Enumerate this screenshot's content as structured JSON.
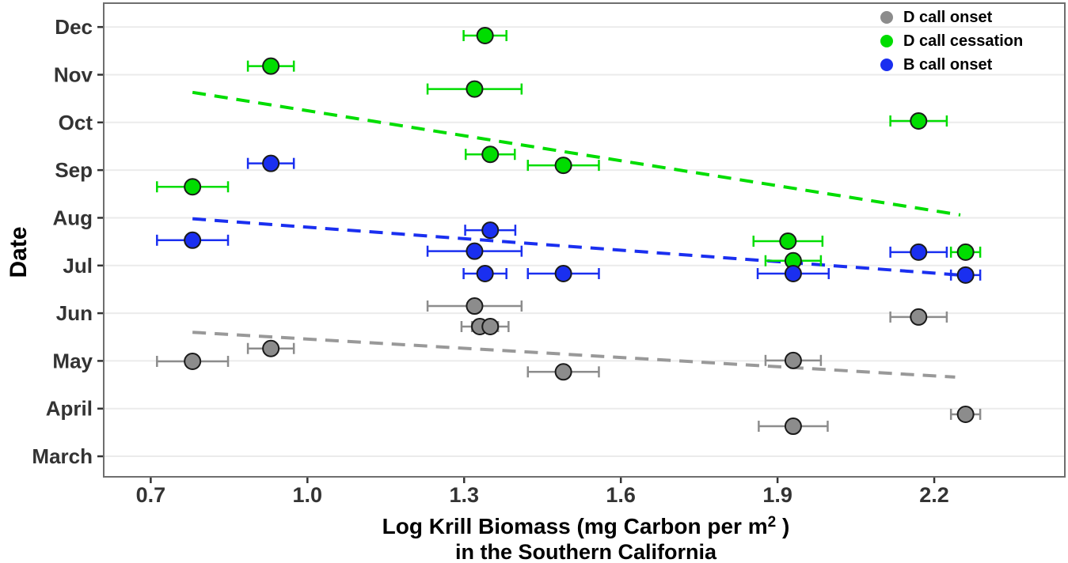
{
  "chart_data": {
    "type": "scatter",
    "title": "",
    "xlabel": {
      "line1_prefix": "Log Krill Biomass (mg Carbon per m",
      "superscript": "2",
      "line1_suffix": " )",
      "line2": "in the Southern California"
    },
    "ylabel": "Date",
    "x_tick_labels": [
      "0.7",
      "1.0",
      "1.3",
      "1.6",
      "1.9",
      "2.2"
    ],
    "x_tick_values": [
      0.7,
      1.0,
      1.3,
      1.6,
      1.9,
      2.2
    ],
    "xlim": [
      0.61,
      2.45
    ],
    "y_tick_labels": [
      "March",
      "April",
      "May",
      "Jun",
      "Jul",
      "Aug",
      "Sep",
      "Oct",
      "Nov",
      "Dec"
    ],
    "y_tick_values": [
      0,
      1,
      2,
      3,
      4,
      5,
      6,
      7,
      8,
      9
    ],
    "y_scale_note": "y measured in months since March (0 = March, 9 = Dec)",
    "ylim": [
      -0.43,
      9.5
    ],
    "grid": "horizontal-major-only",
    "grid_color": "#ebebeb",
    "panel_border_color": "#6e6e6e",
    "tick_color": "#333333",
    "axis_text_color": "#333333",
    "legend_position": "top-right-inside",
    "series": [
      {
        "name": "D call onset",
        "color": "#8c8c8c",
        "trend_color": "#999999",
        "point_edge_color": "#1a1a1a",
        "marker": "circle",
        "line_style": "dashed",
        "trend": {
          "x_start": 0.78,
          "y_start": 2.6,
          "x_end": 2.24,
          "y_end": 1.66
        },
        "points": [
          {
            "x": 0.78,
            "y": 1.99,
            "xerr": 0.068
          },
          {
            "x": 0.93,
            "y": 2.26,
            "xerr": 0.044
          },
          {
            "x": 1.32,
            "y": 3.15,
            "xerr": 0.09
          },
          {
            "x": 1.33,
            "y": 2.72,
            "xerr": 0.035
          },
          {
            "x": 1.35,
            "y": 2.72,
            "xerr": 0.035
          },
          {
            "x": 1.49,
            "y": 1.77,
            "xerr": 0.068
          },
          {
            "x": 1.93,
            "y": 2.01,
            "xerr": 0.053
          },
          {
            "x": 1.93,
            "y": 0.63,
            "xerr": 0.066
          },
          {
            "x": 2.17,
            "y": 2.92,
            "xerr": 0.054
          },
          {
            "x": 2.26,
            "y": 0.88,
            "xerr": 0.028
          }
        ]
      },
      {
        "name": "D call cessation",
        "color": "#00dd00",
        "trend_color": "#00dd00",
        "point_edge_color": "#1a1a1a",
        "marker": "circle",
        "line_style": "dashed",
        "trend": {
          "x_start": 0.78,
          "y_start": 7.63,
          "x_end": 2.25,
          "y_end": 5.06
        },
        "points": [
          {
            "x": 0.78,
            "y": 5.65,
            "xerr": 0.068
          },
          {
            "x": 0.93,
            "y": 8.18,
            "xerr": 0.044
          },
          {
            "x": 1.32,
            "y": 7.7,
            "xerr": 0.09
          },
          {
            "x": 1.34,
            "y": 8.82,
            "xerr": 0.041
          },
          {
            "x": 1.35,
            "y": 6.33,
            "xerr": 0.047
          },
          {
            "x": 1.49,
            "y": 6.1,
            "xerr": 0.068
          },
          {
            "x": 1.92,
            "y": 4.51,
            "xerr": 0.066
          },
          {
            "x": 1.93,
            "y": 4.1,
            "xerr": 0.053
          },
          {
            "x": 2.17,
            "y": 7.03,
            "xerr": 0.054
          },
          {
            "x": 2.26,
            "y": 4.28,
            "xerr": 0.028
          }
        ]
      },
      {
        "name": "B call onset",
        "color": "#1a2ff0",
        "trend_color": "#1a2ff0",
        "point_edge_color": "#1a1a1a",
        "marker": "circle",
        "line_style": "dashed",
        "trend": {
          "x_start": 0.78,
          "y_start": 4.98,
          "x_end": 2.25,
          "y_end": 3.8
        },
        "points": [
          {
            "x": 0.78,
            "y": 4.53,
            "xerr": 0.068
          },
          {
            "x": 0.93,
            "y": 6.14,
            "xerr": 0.044
          },
          {
            "x": 1.32,
            "y": 4.3,
            "xerr": 0.09
          },
          {
            "x": 1.35,
            "y": 4.74,
            "xerr": 0.048
          },
          {
            "x": 1.34,
            "y": 3.83,
            "xerr": 0.041
          },
          {
            "x": 1.49,
            "y": 3.83,
            "xerr": 0.068
          },
          {
            "x": 1.93,
            "y": 3.83,
            "xerr": 0.068
          },
          {
            "x": 2.17,
            "y": 4.28,
            "xerr": 0.054
          },
          {
            "x": 2.26,
            "y": 3.8,
            "xerr": 0.028
          }
        ]
      }
    ]
  }
}
